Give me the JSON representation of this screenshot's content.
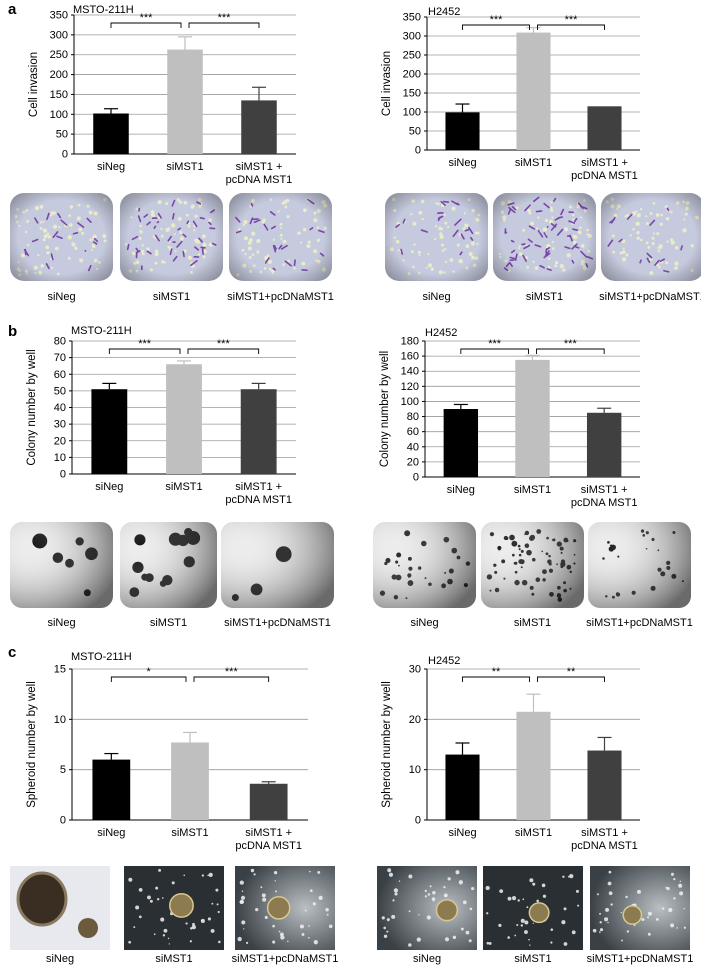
{
  "panels": [
    "a",
    "b",
    "c"
  ],
  "colors": {
    "siNeg": "#000000",
    "siMST1": "#bfbfbf",
    "rescue": "#404040",
    "grid": "#9a9a9a",
    "invasion_photo_bg": "#c6cade",
    "invasion_cells": "#7a46a8",
    "colony_photo_bg": "#ececec",
    "spheroid_photo_bg": "#2a2f33"
  },
  "photo_labels": [
    "siNeg",
    "siMST1",
    "siMST1+pcDNaMST1"
  ],
  "chart_data": [
    {
      "panel": "a",
      "type": "bar",
      "title": "MSTO-211H",
      "ylabel": "Cell invasion",
      "categories": [
        "siNeg",
        "siMST1",
        "siMST1 +\npcDNA MST1"
      ],
      "values": [
        102,
        263,
        135
      ],
      "errors": [
        12,
        32,
        33
      ],
      "ylim": [
        0,
        350
      ],
      "yticks": [
        0,
        50,
        100,
        150,
        200,
        250,
        300,
        350
      ],
      "significance": [
        {
          "from": 0,
          "to": 1,
          "label": "***"
        },
        {
          "from": 1,
          "to": 2,
          "label": "***"
        }
      ],
      "grid": true
    },
    {
      "panel": "a",
      "type": "bar",
      "title": "H2452",
      "ylabel": "Cell invasion",
      "categories": [
        "siNeg",
        "siMST1",
        "siMST1 +\npcDNA MST1"
      ],
      "values": [
        99,
        309,
        115
      ],
      "errors": [
        22,
        13,
        0
      ],
      "ylim": [
        0,
        350
      ],
      "yticks": [
        0,
        50,
        100,
        150,
        200,
        250,
        300,
        350
      ],
      "significance": [
        {
          "from": 0,
          "to": 1,
          "label": "***"
        },
        {
          "from": 1,
          "to": 2,
          "label": "***"
        }
      ],
      "grid": true
    },
    {
      "panel": "b",
      "type": "bar",
      "title": "MSTO-211H",
      "ylabel": "Colony number by well",
      "categories": [
        "siNeg",
        "siMST1",
        "siMST1 +\npcDNA MST1"
      ],
      "values": [
        51,
        66,
        51
      ],
      "errors": [
        3.5,
        2,
        3.5
      ],
      "ylim": [
        0,
        80
      ],
      "yticks": [
        0,
        10,
        20,
        30,
        40,
        50,
        60,
        70,
        80
      ],
      "significance": [
        {
          "from": 0,
          "to": 1,
          "label": "***"
        },
        {
          "from": 1,
          "to": 2,
          "label": "***"
        }
      ],
      "grid": true
    },
    {
      "panel": "b",
      "type": "bar",
      "title": "H2452",
      "ylabel": "Colony number by well",
      "categories": [
        "siNeg",
        "siMST1",
        "siMST1 +\npcDNA MST1"
      ],
      "values": [
        90,
        155,
        85
      ],
      "errors": [
        6,
        6,
        6
      ],
      "ylim": [
        0,
        180
      ],
      "yticks": [
        0,
        20,
        40,
        60,
        80,
        100,
        120,
        140,
        160,
        180
      ],
      "significance": [
        {
          "from": 0,
          "to": 1,
          "label": "***"
        },
        {
          "from": 1,
          "to": 2,
          "label": "***"
        }
      ],
      "grid": true
    },
    {
      "panel": "c",
      "type": "bar",
      "title": "MSTO-211H",
      "ylabel": "Spheroid number by well",
      "categories": [
        "siNeg",
        "siMST1",
        "siMST1 +\npcDNA MST1"
      ],
      "values": [
        6.0,
        7.7,
        3.6
      ],
      "errors": [
        0.6,
        1.0,
        0.2
      ],
      "ylim": [
        0,
        15
      ],
      "yticks": [
        0,
        5,
        10,
        15
      ],
      "significance": [
        {
          "from": 0,
          "to": 1,
          "label": "*"
        },
        {
          "from": 1,
          "to": 2,
          "label": "***"
        }
      ],
      "grid": true
    },
    {
      "panel": "c",
      "type": "bar",
      "title": "H2452",
      "ylabel": "Spheroid number by well",
      "categories": [
        "siNeg",
        "siMST1",
        "siMST1 +\npcDNA MST1"
      ],
      "values": [
        13.0,
        21.5,
        13.8
      ],
      "errors": [
        2.3,
        3.5,
        2.6
      ],
      "ylim": [
        0,
        30
      ],
      "yticks": [
        0,
        10,
        20,
        30
      ],
      "significance": [
        {
          "from": 0,
          "to": 1,
          "label": "**"
        },
        {
          "from": 1,
          "to": 2,
          "label": "**"
        }
      ],
      "grid": true
    }
  ]
}
